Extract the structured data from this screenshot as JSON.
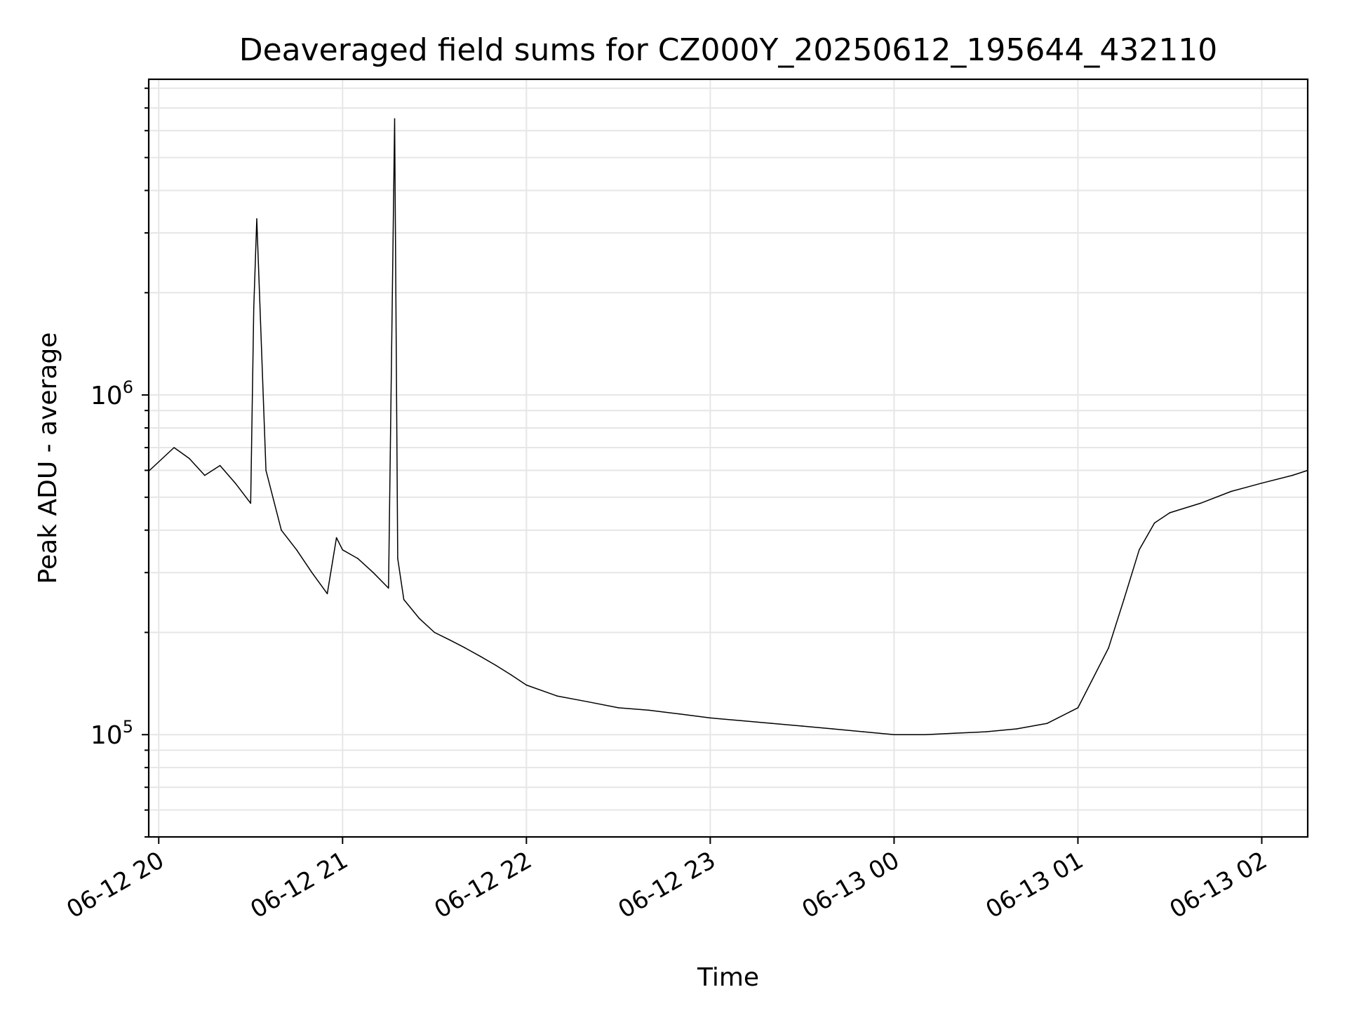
{
  "chart_data": {
    "type": "line",
    "title": "Deaveraged field sums for CZ000Y_20250612_195644_432110",
    "xlabel": "Time",
    "ylabel": "Peak ADU - average",
    "xlim": [
      "2025-06-12T19:56:44",
      "2025-06-13T02:15:00"
    ],
    "ylim": [
      50000,
      8500000
    ],
    "yscale": "log",
    "grid": true,
    "line_color": "#000000",
    "grid_color": "#e6e6e6",
    "x_ticks": [
      {
        "value": "2025-06-12T20:00:00",
        "label": "06-12 20"
      },
      {
        "value": "2025-06-12T21:00:00",
        "label": "06-12 21"
      },
      {
        "value": "2025-06-12T22:00:00",
        "label": "06-12 22"
      },
      {
        "value": "2025-06-12T23:00:00",
        "label": "06-12 23"
      },
      {
        "value": "2025-06-13T00:00:00",
        "label": "06-13 00"
      },
      {
        "value": "2025-06-13T01:00:00",
        "label": "06-13 01"
      },
      {
        "value": "2025-06-13T02:00:00",
        "label": "06-13 02"
      }
    ],
    "y_ticks": [
      {
        "value": 100000,
        "base": "10",
        "exp": "5"
      },
      {
        "value": 1000000,
        "base": "10",
        "exp": "6"
      }
    ],
    "series": [
      {
        "x": [
          "2025-06-12T19:57:00",
          "2025-06-12T20:05:00",
          "2025-06-12T20:10:00",
          "2025-06-12T20:15:00",
          "2025-06-12T20:20:00",
          "2025-06-12T20:25:00",
          "2025-06-12T20:30:00",
          "2025-06-12T20:31:00",
          "2025-06-12T20:32:00",
          "2025-06-12T20:35:00",
          "2025-06-12T20:40:00",
          "2025-06-12T20:45:00",
          "2025-06-12T20:50:00",
          "2025-06-12T20:55:00",
          "2025-06-12T20:58:00",
          "2025-06-12T21:00:00",
          "2025-06-12T21:05:00",
          "2025-06-12T21:10:00",
          "2025-06-12T21:15:00",
          "2025-06-12T21:17:00",
          "2025-06-12T21:18:00",
          "2025-06-12T21:20:00",
          "2025-06-12T21:25:00",
          "2025-06-12T21:30:00",
          "2025-06-12T21:35:00",
          "2025-06-12T21:40:00",
          "2025-06-12T21:45:00",
          "2025-06-12T21:50:00",
          "2025-06-12T21:55:00",
          "2025-06-12T22:00:00",
          "2025-06-12T22:10:00",
          "2025-06-12T22:20:00",
          "2025-06-12T22:30:00",
          "2025-06-12T22:40:00",
          "2025-06-12T22:50:00",
          "2025-06-12T23:00:00",
          "2025-06-12T23:10:00",
          "2025-06-12T23:20:00",
          "2025-06-12T23:30:00",
          "2025-06-12T23:40:00",
          "2025-06-12T23:50:00",
          "2025-06-13T00:00:00",
          "2025-06-13T00:10:00",
          "2025-06-13T00:20:00",
          "2025-06-13T00:30:00",
          "2025-06-13T00:40:00",
          "2025-06-13T00:50:00",
          "2025-06-13T01:00:00",
          "2025-06-13T01:10:00",
          "2025-06-13T01:15:00",
          "2025-06-13T01:20:00",
          "2025-06-13T01:25:00",
          "2025-06-13T01:30:00",
          "2025-06-13T01:40:00",
          "2025-06-13T01:50:00",
          "2025-06-13T02:00:00",
          "2025-06-13T02:10:00",
          "2025-06-13T02:15:00"
        ],
        "values": [
          600000,
          700000,
          650000,
          580000,
          620000,
          550000,
          480000,
          1800000,
          3300000,
          600000,
          400000,
          350000,
          300000,
          260000,
          380000,
          350000,
          330000,
          300000,
          270000,
          6500000,
          330000,
          250000,
          220000,
          200000,
          190000,
          180000,
          170000,
          160000,
          150000,
          140000,
          130000,
          125000,
          120000,
          118000,
          115000,
          112000,
          110000,
          108000,
          106000,
          104000,
          102000,
          100000,
          100000,
          101000,
          102000,
          104000,
          108000,
          120000,
          180000,
          250000,
          350000,
          420000,
          450000,
          480000,
          520000,
          550000,
          580000,
          600000
        ]
      }
    ]
  }
}
